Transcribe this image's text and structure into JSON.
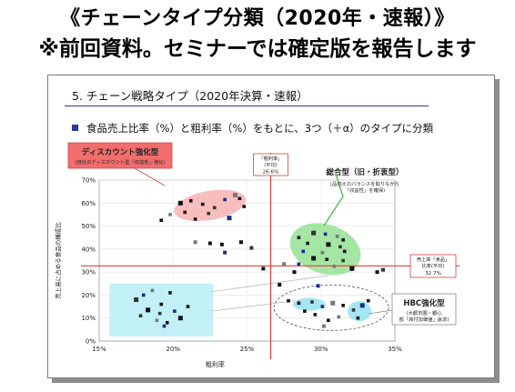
{
  "header": {
    "line1": "《チェーンタイプ分類（2020年・速報）》",
    "line2": "※前回資料。セミナーでは確定版を報告します"
  },
  "slide": {
    "title": "5. チェーン戦略タイプ（2020年決算・速報）",
    "subtitle": "食品売上比率（%）と粗利率（%）をもとに、3つ（＋α）のタイプに分類"
  },
  "colors": {
    "red_line": "#e03c3c",
    "discount_zone": "#f7b3b3",
    "general_zone": "#8fe08f",
    "hbc_zone": "#9be3f3",
    "hbc_box": "#c2f0f7",
    "label_box": "#f26d6d"
  },
  "chart_data": {
    "type": "scatter",
    "xlabel": "粗利率",
    "ylabel": "売上高に占める食品の構成比",
    "xlim": [
      15,
      35
    ],
    "ylim": [
      0,
      70
    ],
    "x_ticks": [
      "15%",
      "20%",
      "25%",
      "30%",
      "35%"
    ],
    "y_ticks": [
      "0%",
      "10%",
      "20%",
      "30%",
      "40%",
      "50%",
      "60%",
      "70%"
    ],
    "reference_lines": {
      "gross_margin_avg": {
        "title": "「粗利率」",
        "sub": "(平均)",
        "value": "26.6%",
        "x": 26.6
      },
      "food_ratio_avg": {
        "title": "売上高「食品」",
        "sub": "比率(平均)",
        "value": "32.7%",
        "y": 32.7
      }
    },
    "groups": [
      {
        "name": "ディスカウント強化型",
        "desc": "(自社のディスカウント型「収益性」強化)",
        "points": [
          [
            20.5,
            60
          ],
          [
            21.2,
            61
          ],
          [
            22,
            59.5
          ],
          [
            22.8,
            58
          ],
          [
            23.5,
            61.5
          ],
          [
            24.2,
            63.5
          ],
          [
            24.5,
            62
          ],
          [
            24.8,
            58.5
          ],
          [
            20.8,
            56
          ],
          [
            22.4,
            55.5
          ],
          [
            23.8,
            53.5
          ],
          [
            19.8,
            55
          ],
          [
            19.2,
            52.5
          ],
          [
            21.5,
            53
          ]
        ]
      },
      {
        "name": "総合型（旧・折衷型）",
        "desc": "(品揃えのバランスを取りながら「収益性」を確保)",
        "points": [
          [
            28.5,
            45
          ],
          [
            29.5,
            47
          ],
          [
            30.3,
            46.5
          ],
          [
            31.1,
            45.5
          ],
          [
            31.5,
            44
          ],
          [
            29.1,
            42.5
          ],
          [
            30.5,
            42
          ],
          [
            31.3,
            41
          ],
          [
            28.8,
            39
          ],
          [
            30.1,
            38.5
          ],
          [
            31.6,
            39
          ],
          [
            29.5,
            36
          ],
          [
            30.4,
            35.5
          ],
          [
            31.5,
            35
          ],
          [
            28.5,
            33.5
          ],
          [
            30.9,
            32.5
          ],
          [
            32.1,
            31.5
          ]
        ]
      },
      {
        "name": "HBC強化型",
        "desc": "(大都市圏・都心部「高付加価値」訴求)",
        "points": [
          [
            27.8,
            17.5
          ],
          [
            28.5,
            16.5
          ],
          [
            29.4,
            17
          ],
          [
            30.1,
            15
          ],
          [
            30.8,
            16.5
          ],
          [
            28.9,
            13
          ],
          [
            29.6,
            11.5
          ],
          [
            31.5,
            15.5
          ],
          [
            32.2,
            13.5
          ],
          [
            32.8,
            15.5
          ],
          [
            31.2,
            10.5
          ],
          [
            32.5,
            10
          ],
          [
            33.2,
            17.5
          ],
          [
            30.5,
            9
          ]
        ]
      },
      {
        "name": "",
        "desc": "",
        "points": [
          [
            17.5,
            18
          ],
          [
            18,
            20
          ],
          [
            18.6,
            22
          ],
          [
            19.2,
            16
          ],
          [
            19.8,
            21
          ],
          [
            18.3,
            13.5
          ],
          [
            19.1,
            12
          ],
          [
            20.1,
            13
          ],
          [
            18.9,
            9
          ],
          [
            19.6,
            8
          ],
          [
            20.5,
            10
          ],
          [
            21,
            15
          ],
          [
            17.8,
            11
          ],
          [
            19.4,
            6.5
          ]
        ]
      }
    ],
    "other_points": [
      [
        21.5,
        43
      ],
      [
        22.5,
        42.5
      ],
      [
        23.3,
        42
      ],
      [
        24.6,
        43
      ],
      [
        25.3,
        40.5
      ],
      [
        23.5,
        38.5
      ],
      [
        27.5,
        33.5
      ],
      [
        26.1,
        31.5
      ],
      [
        28.2,
        30
      ],
      [
        33.8,
        30
      ],
      [
        34.2,
        31
      ],
      [
        29.8,
        24
      ],
      [
        30.2,
        6.5
      ],
      [
        27.2,
        24.5
      ]
    ]
  }
}
